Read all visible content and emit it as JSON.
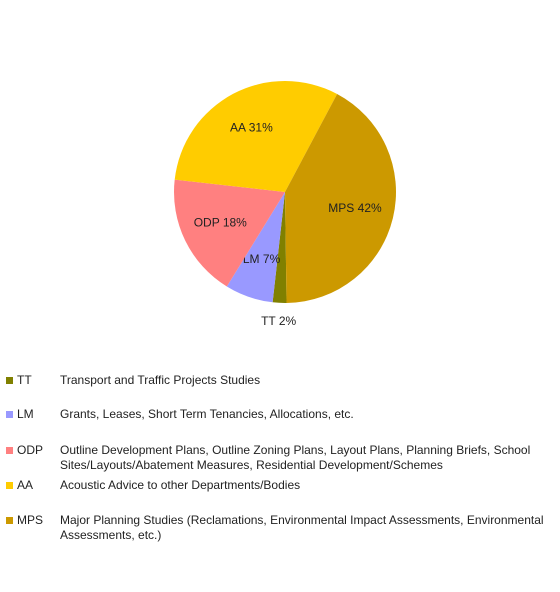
{
  "chart_data": {
    "type": "pie",
    "categories": [
      "TT",
      "LM",
      "ODP",
      "AA",
      "MPS"
    ],
    "values": [
      2,
      7,
      18,
      31,
      42
    ],
    "value_labels": [
      "2%",
      "7%",
      "18%",
      "31%",
      "42%"
    ],
    "colors": [
      "#808000",
      "#9999ff",
      "#ff8080",
      "#ffcc00",
      "#cc9900"
    ],
    "descriptions": [
      "Transport and Traffic Projects Studies",
      "Grants, Leases, Short Term Tenancies, Allocations, etc.",
      "Outline Development Plans, Outline Zoning Plans, Layout Plans, Planning Briefs, School Sites/Layouts/Abatement Measures, Residential Development/Schemes",
      "Acoustic Advice to other Departments/Bodies",
      "Major Planning Studies (Reclamations, Environmental Impact Assessments, Environmental Assessments, etc.)"
    ]
  }
}
